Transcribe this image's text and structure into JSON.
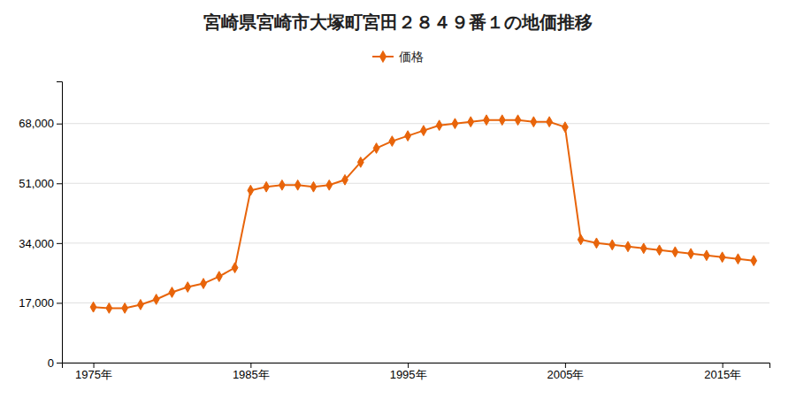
{
  "chart_data": {
    "type": "line",
    "title": "宮崎県宮崎市大塚町宮田２８４９番１の地価推移",
    "x": [
      1975,
      1976,
      1977,
      1978,
      1979,
      1980,
      1981,
      1982,
      1983,
      1984,
      1985,
      1986,
      1987,
      1988,
      1989,
      1990,
      1991,
      1992,
      1993,
      1994,
      1995,
      1996,
      1997,
      1998,
      1999,
      2000,
      2001,
      2002,
      2003,
      2004,
      2005,
      2006,
      2007,
      2008,
      2009,
      2010,
      2011,
      2012,
      2013,
      2014,
      2015,
      2016,
      2017
    ],
    "series": [
      {
        "name": "価格",
        "color": "#e8640a",
        "marker": "diamond",
        "values": [
          15800,
          15500,
          15500,
          16500,
          18000,
          20000,
          21500,
          22500,
          24500,
          27000,
          49000,
          50000,
          50500,
          50500,
          50000,
          50500,
          52000,
          57000,
          61000,
          63000,
          64500,
          66000,
          67500,
          68000,
          68500,
          69000,
          69000,
          69000,
          68500,
          68500,
          67000,
          35000,
          34000,
          33500,
          33000,
          32500,
          32000,
          31500,
          31000,
          30500,
          30000,
          29500,
          29000
        ]
      }
    ],
    "xlim": [
      1973,
      2018
    ],
    "xticks": [
      {
        "value": 1975,
        "label": "1975年"
      },
      {
        "value": 1985,
        "label": "1985年"
      },
      {
        "value": 1995,
        "label": "1995年"
      },
      {
        "value": 2005,
        "label": "2005年"
      },
      {
        "value": 2015,
        "label": "2015年"
      }
    ],
    "ylim": [
      0,
      80000
    ],
    "yticks": [
      0,
      {
        "value": 17000,
        "label": "17,000"
      },
      {
        "value": 34000,
        "label": "34,000"
      },
      {
        "value": 51000,
        "label": "51,000"
      },
      {
        "value": 68000,
        "label": "68,000"
      }
    ],
    "grid": true,
    "legend": "top"
  }
}
